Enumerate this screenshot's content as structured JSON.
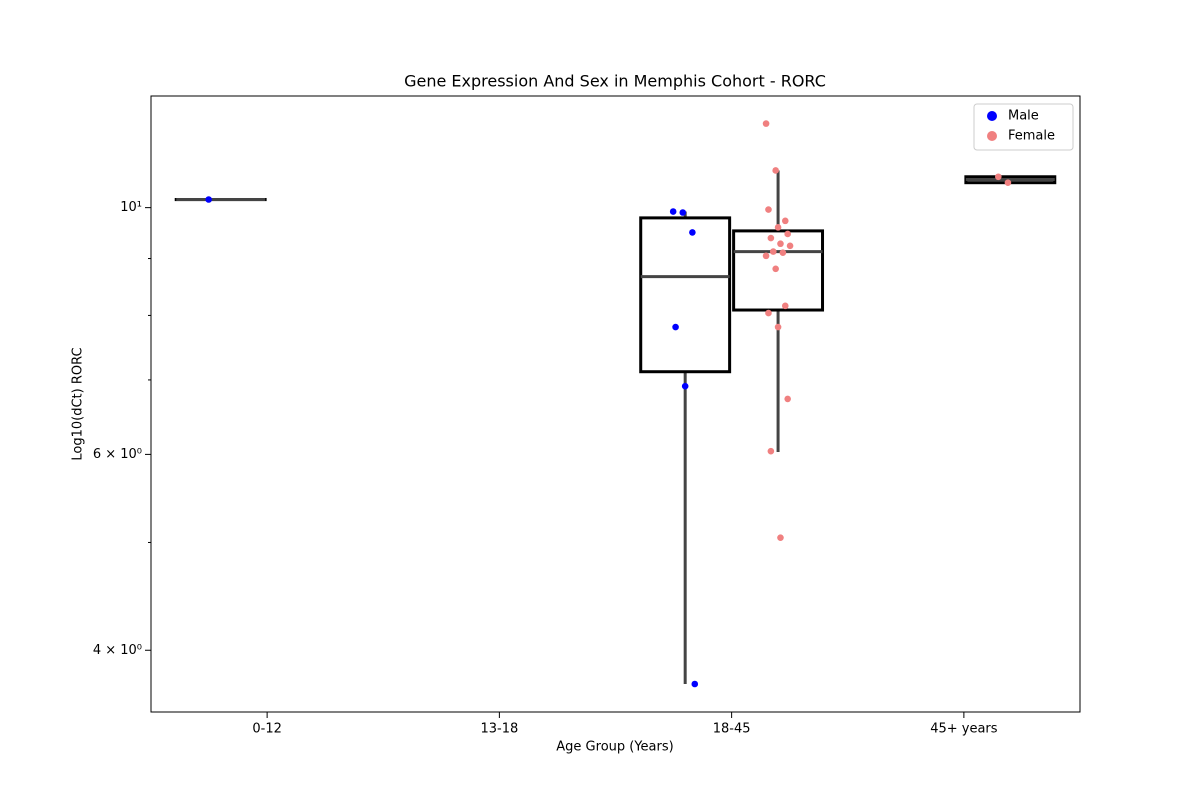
{
  "chart_data": {
    "type": "box",
    "title": "Gene Expression And Sex in Memphis Cohort - RORC",
    "xlabel": "Age Group (Years)",
    "ylabel": "Log10(dCt) RORC",
    "categories": [
      "0-12",
      "13-18",
      "18-45",
      "45+ years"
    ],
    "log_y": true,
    "ylim": [
      3.52,
      12.6
    ],
    "yticks": [
      {
        "value": 10,
        "label": "10¹"
      },
      {
        "value": 6,
        "label": "6 × 10⁰"
      },
      {
        "value": 4,
        "label": "4 × 10⁰"
      }
    ],
    "yminor": [
      5,
      7,
      8,
      9
    ],
    "legend": "upper right",
    "series": [
      {
        "name": "Male",
        "color": "blue",
        "boxes": [
          {
            "low": 10.17,
            "q1": 10.17,
            "median": 10.17,
            "q3": 10.17,
            "high": 10.17
          },
          null,
          {
            "low": 3.73,
            "q1": 7.12,
            "median": 8.67,
            "q3": 9.79,
            "high": 9.92
          },
          null
        ],
        "points": [
          [
            10.17
          ],
          [],
          [
            9.92,
            9.9,
            9.5,
            7.81,
            6.91,
            3.73
          ],
          []
        ]
      },
      {
        "name": "Female",
        "color": "lightcoral",
        "boxes": [
          null,
          null,
          {
            "low": 6.03,
            "q1": 8.09,
            "median": 9.13,
            "q3": 9.53,
            "high": 10.8
          },
          {
            "low": 10.53,
            "q1": 10.53,
            "median": 10.6,
            "q3": 10.66,
            "high": 10.66
          }
        ],
        "points": [
          [],
          [],
          [
            11.9,
            10.8,
            9.73,
            9.96,
            9.6,
            9.47,
            9.39,
            9.28,
            9.24,
            9.13,
            9.11,
            9.05,
            8.81,
            8.16,
            8.04,
            7.81,
            6.73,
            6.04,
            5.05
          ],
          [
            10.66,
            10.53
          ]
        ]
      }
    ]
  }
}
